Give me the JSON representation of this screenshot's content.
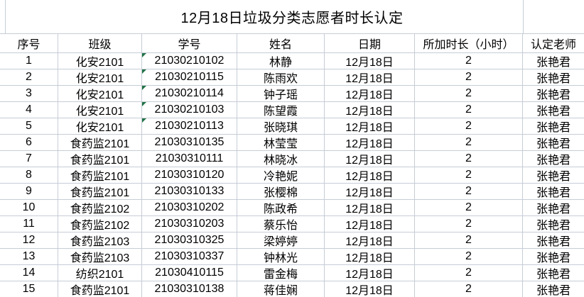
{
  "sheet_title": "12月18日垃圾分类志愿者时长认定",
  "table": {
    "columns": [
      "序号",
      "班级",
      "学号",
      "姓名",
      "日期",
      "所加时长（小时）",
      "认定老师"
    ],
    "rows": [
      [
        "1",
        "化安2101",
        "21030210102",
        "林静",
        "12月18日",
        "2",
        "张艳君"
      ],
      [
        "2",
        "化安2101",
        "21030210115",
        "陈雨欢",
        "12月18日",
        "2",
        "张艳君"
      ],
      [
        "3",
        "化安2101",
        "21030210114",
        "钟子瑶",
        "12月18日",
        "2",
        "张艳君"
      ],
      [
        "4",
        "化安2101",
        "21030210103",
        "陈望霞",
        "12月18日",
        "2",
        "张艳君"
      ],
      [
        "5",
        "化安2101",
        "21030210113",
        "张晓琪",
        "12月18日",
        "2",
        "张艳君"
      ],
      [
        "6",
        "食药监2101",
        "21030310135",
        "林莹莹",
        "12月18日",
        "2",
        "张艳君"
      ],
      [
        "7",
        "食药监2101",
        "21030310111",
        "林晓冰",
        "12月18日",
        "2",
        "张艳君"
      ],
      [
        "8",
        "食药监2101",
        "21030310120",
        "冷艳妮",
        "12月18日",
        "2",
        "张艳君"
      ],
      [
        "9",
        "食药监2101",
        "21030310133",
        "张樱棉",
        "12月18日",
        "2",
        "张艳君"
      ],
      [
        "10",
        "食药监2102",
        "21030310202",
        "陈政希",
        "12月18日",
        "2",
        "张艳君"
      ],
      [
        "11",
        "食药监2102",
        "21030310203",
        "蔡乐怡",
        "12月18日",
        "2",
        "张艳君"
      ],
      [
        "12",
        "食药监2103",
        "21030310325",
        "梁婷婷",
        "12月18日",
        "2",
        "张艳君"
      ],
      [
        "13",
        "食药监2103",
        "21030310337",
        "钟林光",
        "12月18日",
        "2",
        "张艳君"
      ],
      [
        "14",
        "纺织2101",
        "21030410115",
        "雷金梅",
        "12月18日",
        "2",
        "张艳君"
      ],
      [
        "15",
        "食药监2101",
        "21030310138",
        "蒋佳娴",
        "12月18日",
        "2",
        "张艳君"
      ]
    ],
    "green_flag_row_indexes": [
      0,
      1,
      2,
      3,
      4
    ],
    "green_flag_column_index": 2
  },
  "colors": {
    "gridline": "#c6ccd6",
    "green_flag": "#217346",
    "text": "#000000",
    "background": "#ffffff"
  }
}
